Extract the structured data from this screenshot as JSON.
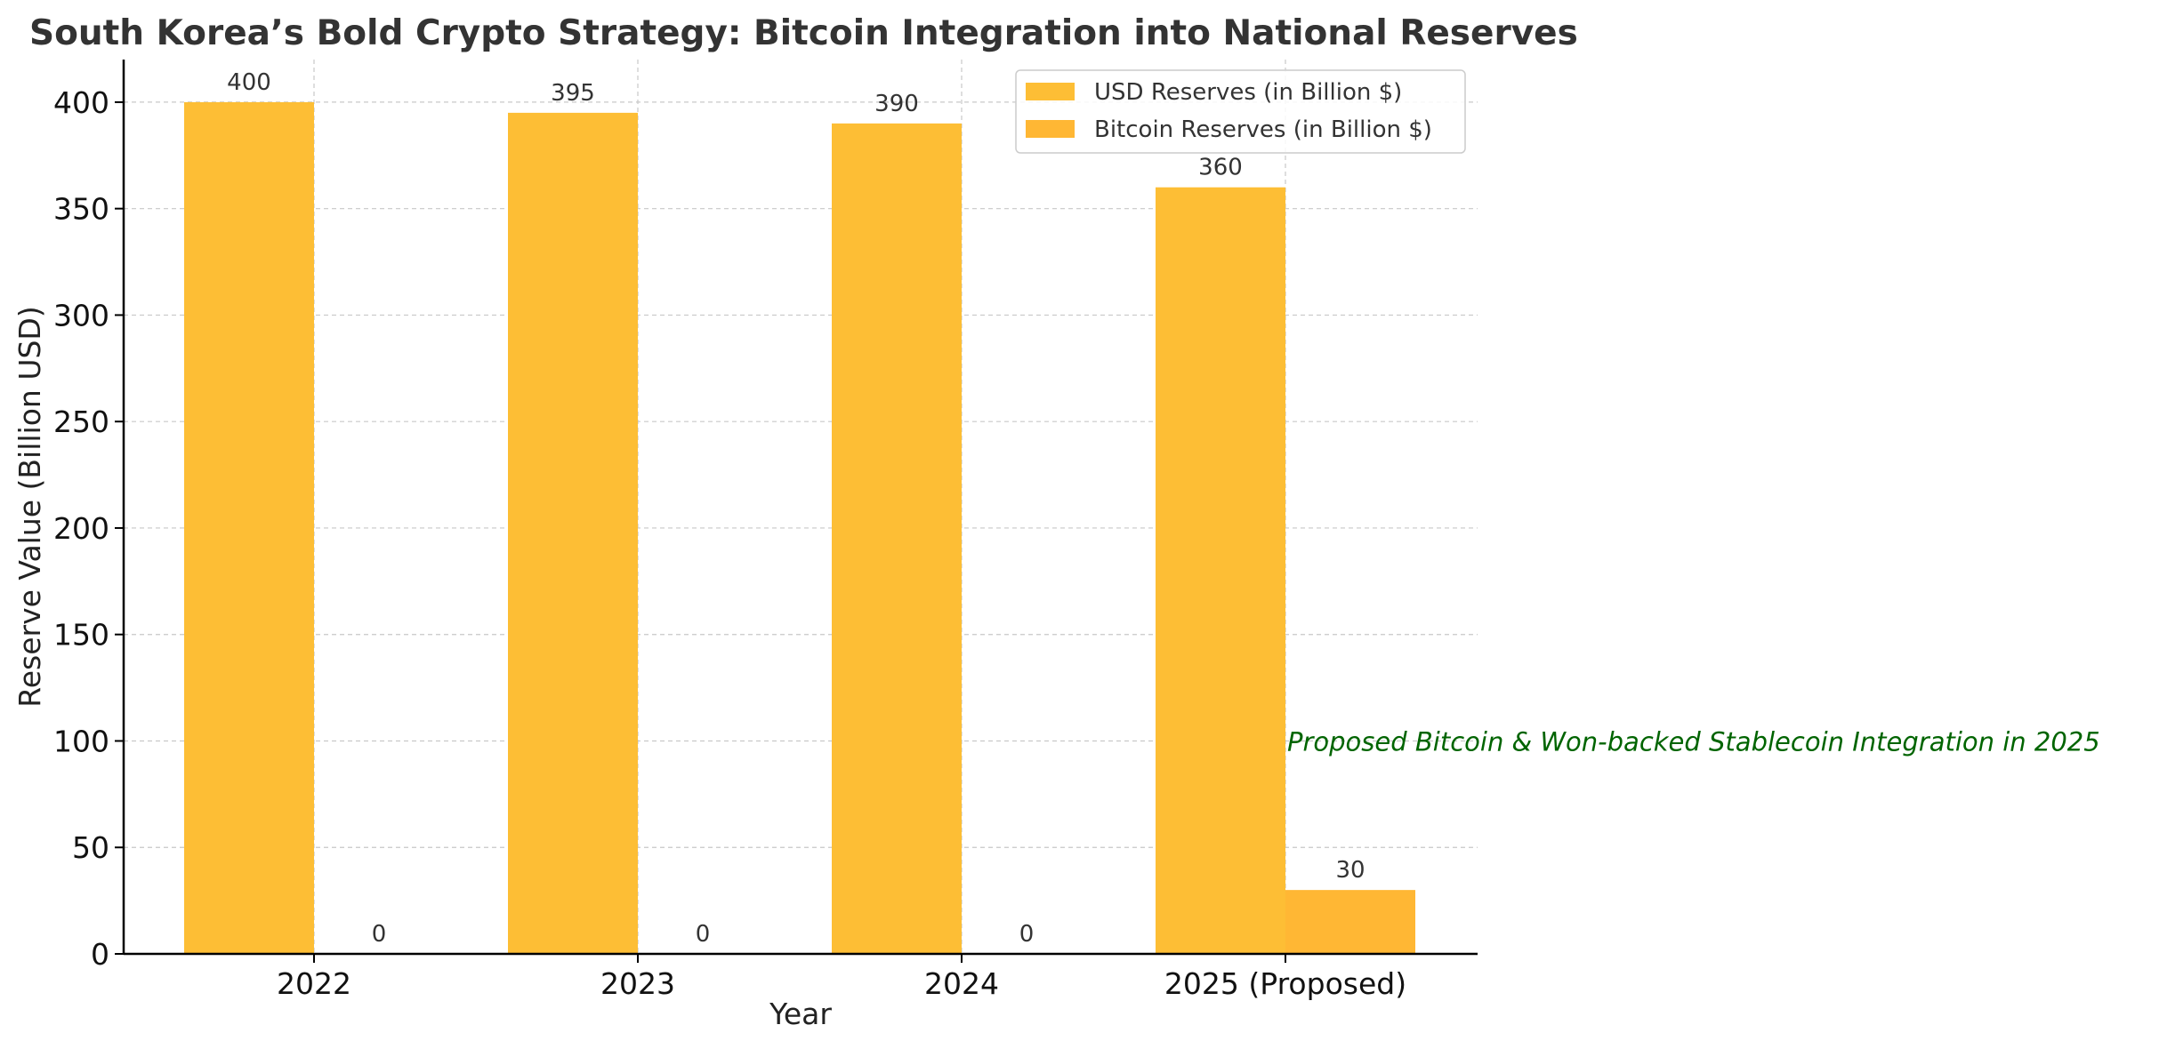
{
  "chart_data": {
    "type": "bar",
    "title": "South Korea’s Bold Crypto Strategy: Bitcoin Integration into National Reserves",
    "xlabel": "Year",
    "ylabel": "Reserve Value (Billion USD)",
    "categories": [
      "2022",
      "2023",
      "2024",
      "2025 (Proposed)"
    ],
    "series": [
      {
        "name": "USD Reserves (in Billion $)",
        "values": [
          400,
          395,
          390,
          360
        ],
        "color": "#FDBE35"
      },
      {
        "name": "Bitcoin Reserves (in Billion $)",
        "values": [
          0,
          0,
          0,
          30
        ],
        "color": "#FFB734"
      }
    ],
    "ylim": [
      0,
      420
    ],
    "yticks": [
      0,
      50,
      100,
      150,
      200,
      250,
      300,
      350,
      400
    ],
    "grid": true,
    "legend_position": "top-right",
    "annotation": {
      "text": "Proposed Bitcoin & Won-backed Stablecoin Integration in 2025",
      "y": 100,
      "category": "2025 (Proposed)",
      "color": "#006400"
    }
  }
}
